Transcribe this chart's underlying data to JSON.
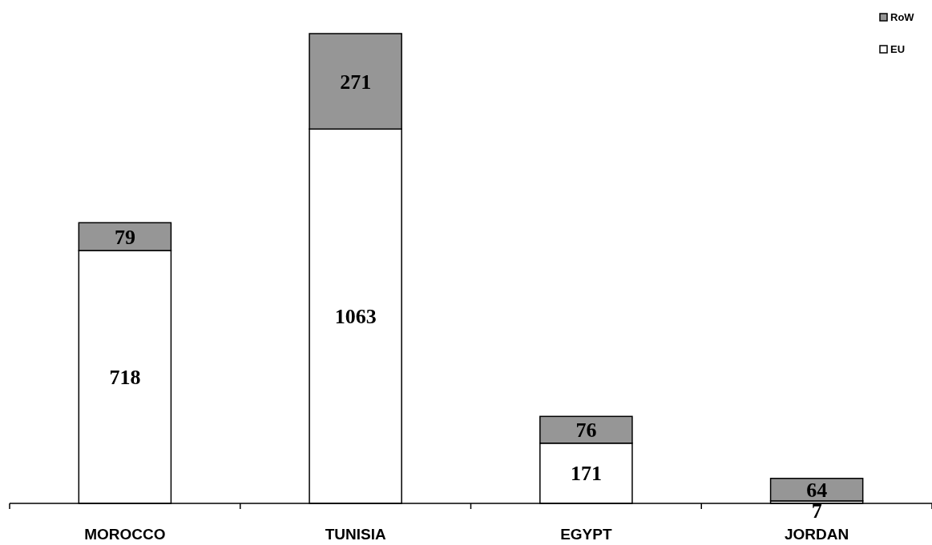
{
  "chart_data": {
    "type": "bar",
    "stacked": true,
    "categories": [
      "MOROCCO",
      "TUNISIA",
      "EGYPT",
      "JORDAN"
    ],
    "series": [
      {
        "name": "EU",
        "color": "#ffffff",
        "values": [
          718,
          1063,
          171,
          7
        ]
      },
      {
        "name": "RoW",
        "color": "#969696",
        "values": [
          79,
          271,
          76,
          64
        ]
      }
    ],
    "data_labels": true,
    "legend": "top right"
  }
}
